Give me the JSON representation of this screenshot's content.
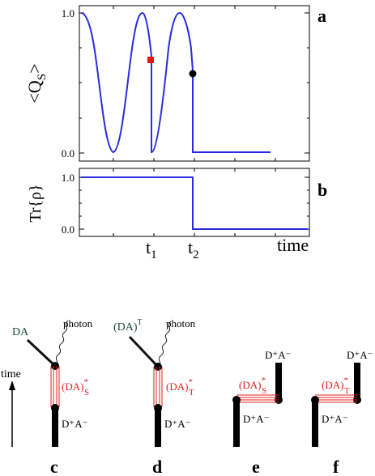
{
  "panel_a": {
    "letter": "a",
    "ylabel_main": "<Q",
    "ylabel_sub": "S",
    "ylabel_end": ">",
    "tick_top": "1.0",
    "tick_bottom": "0.0"
  },
  "panel_b": {
    "letter": "b",
    "ylabel": "Tr{ρ}",
    "tick_top": "1.0",
    "tick_bottom": "0.0"
  },
  "time_axis": {
    "t1_main": "t",
    "t1_sub": "1",
    "t2_main": "t",
    "t2_sub": "2",
    "time_label": "time"
  },
  "chart_data": [
    {
      "type": "line",
      "panel": "a",
      "ylim": [
        0,
        1
      ],
      "series": [
        {
          "color": "#2a2adf",
          "description_points": [
            [
              0.0,
              1.0
            ],
            [
              0.15,
              0.85
            ],
            [
              0.3,
              0.5
            ],
            [
              0.45,
              0.15
            ],
            [
              0.57,
              0.0
            ],
            [
              0.7,
              0.15
            ],
            [
              0.85,
              0.5
            ],
            [
              1.0,
              0.85
            ],
            [
              1.12,
              1.0
            ],
            [
              1.25,
              0.85
            ],
            [
              1.4,
              0.5
            ],
            [
              1.52,
              0.7
            ],
            [
              1.52,
              0.0
            ],
            [
              1.6,
              0.1
            ],
            [
              1.75,
              0.5
            ],
            [
              1.9,
              0.9
            ],
            [
              2.0,
              1.0
            ],
            [
              2.1,
              0.9
            ],
            [
              2.2,
              0.6
            ],
            [
              2.2,
              0.0
            ],
            [
              3.0,
              0.0
            ]
          ]
        }
      ],
      "markers": [
        {
          "x": 1.52,
          "y": 0.7,
          "shape": "square",
          "color": "#ee1111"
        },
        {
          "x": 2.2,
          "y": 0.6,
          "shape": "circle",
          "color": "#000000"
        }
      ]
    },
    {
      "type": "line",
      "panel": "b",
      "ylim": [
        0,
        1
      ],
      "series": [
        {
          "color": "#2a2adf",
          "description_points": [
            [
              0.0,
              1.0
            ],
            [
              2.2,
              1.0
            ],
            [
              2.2,
              0.0
            ],
            [
              3.0,
              0.0
            ]
          ]
        }
      ]
    }
  ],
  "diagrams": {
    "time_label": "time",
    "c": {
      "letter": "c",
      "top_label": "DA",
      "photon_label": "photon",
      "state_main": "(DA)",
      "state_sup": "*",
      "state_sub": "S",
      "bottom_label": "D⁺A⁻"
    },
    "d": {
      "letter": "d",
      "top_label": "(DA)",
      "top_sup": "T",
      "photon_label": "photon",
      "state_main": "(DA)",
      "state_sup": "*",
      "state_sub": "T",
      "bottom_label": "D⁺A⁻"
    },
    "e": {
      "letter": "e",
      "top_label": "D⁺A⁻",
      "state_main": "(DA)",
      "state_sup": "*",
      "state_sub": "S",
      "bottom_label": "D⁺A⁻"
    },
    "f": {
      "letter": "f",
      "top_label": "D⁺A⁻",
      "state_main": "(DA)",
      "state_sup": "*",
      "state_sub": "T",
      "bottom_label": "D⁺A⁻"
    }
  },
  "colors": {
    "curve": "#2a2adf",
    "marker_red": "#ee1111",
    "state_red": "#e02020",
    "dark_green": "#1f4a3a"
  }
}
